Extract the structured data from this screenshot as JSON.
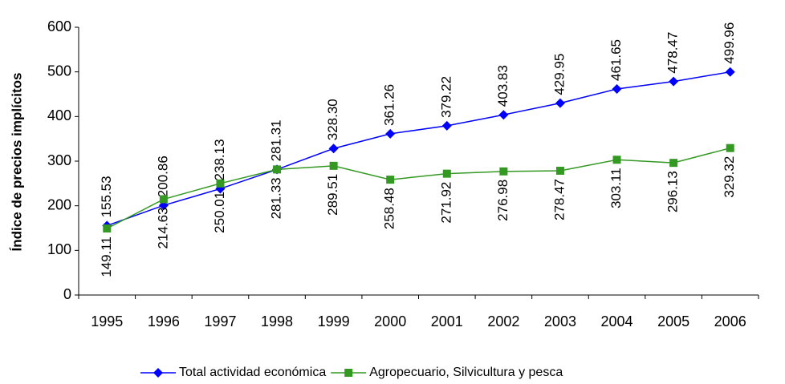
{
  "chart_data": {
    "type": "line",
    "y_label": "Índice de precios implícitos",
    "categories": [
      "1995",
      "1996",
      "1997",
      "1998",
      "1999",
      "2000",
      "2001",
      "2002",
      "2003",
      "2004",
      "2005",
      "2006"
    ],
    "series": [
      {
        "name": "Total actividad económica",
        "color": "#0000ff",
        "marker": "diamond",
        "values": [
          155.53,
          200.86,
          238.13,
          281.31,
          328.3,
          361.26,
          379.22,
          403.83,
          429.95,
          461.65,
          478.47,
          499.96
        ],
        "value_labels": [
          "155.53",
          "200.86",
          "238.13",
          "281.31",
          "328.30",
          "361.26",
          "379.22",
          "403.83",
          "429.95",
          "461.65",
          "478.47",
          "499.96"
        ]
      },
      {
        "name": "Agropecuario, Silvicultura y pesca",
        "color": "#339922",
        "marker": "square",
        "values": [
          149.11,
          214.63,
          250.01,
          281.33,
          289.51,
          258.48,
          271.92,
          276.98,
          278.47,
          303.11,
          296.13,
          329.32
        ],
        "value_labels": [
          "149.11",
          "214.63",
          "250.01",
          "281.33",
          "289.51",
          "258.48",
          "271.92",
          "276.98",
          "278.47",
          "303.11",
          "296.13",
          "329.32"
        ]
      }
    ],
    "ylim": [
      0,
      600
    ],
    "yticks": [
      0,
      100,
      200,
      300,
      400,
      500,
      600
    ],
    "grid": false,
    "legend": "bottom"
  }
}
